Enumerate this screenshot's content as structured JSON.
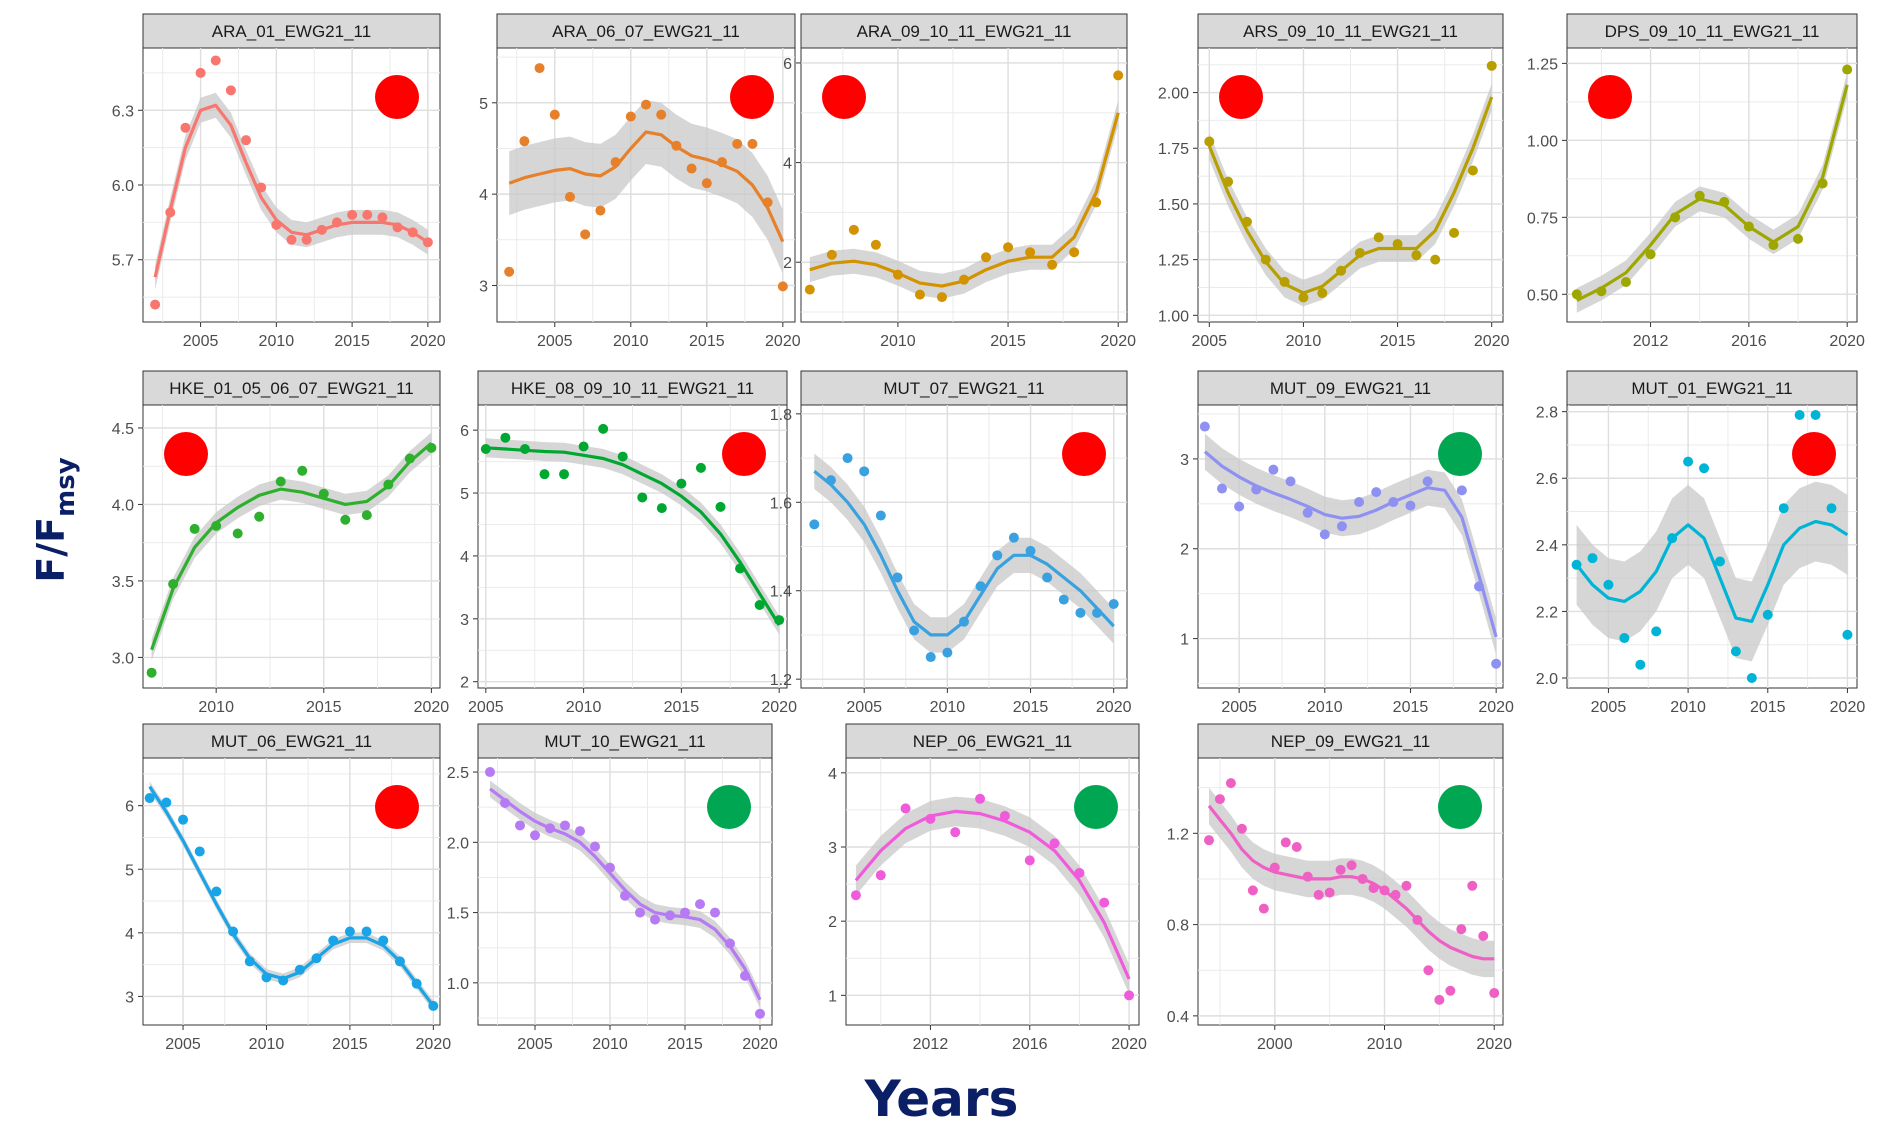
{
  "figure": {
    "ylabel_main": "F",
    "ylabel_main_sub": "msy",
    "ylabel_main_prefix": "F/",
    "xlabel_main": "Years",
    "colors": {
      "red_dot": "#ff0000",
      "green_dot": "#00a651",
      "strip": "#d9d9d9",
      "ribbon": "#c8c8c8",
      "title_blue": "#0b1f66"
    }
  },
  "chart_data": [
    {
      "type": "scatter",
      "title": "ARA_01_EWG21_11",
      "color": "#f8766d",
      "status": "red",
      "status_pos": "top-right",
      "xlim": [
        2001.2,
        2020.8
      ],
      "ylim": [
        5.45,
        6.55
      ],
      "xticks": [
        2005,
        2010,
        2015,
        2020
      ],
      "yticks": [
        5.7,
        6.0,
        6.3
      ],
      "ytick_labels": [
        "5.7",
        "6.0",
        "6.3"
      ],
      "x": [
        2002,
        2003,
        2004,
        2005,
        2006,
        2007,
        2008,
        2009,
        2010,
        2011,
        2012,
        2013,
        2014,
        2015,
        2016,
        2017,
        2018,
        2019,
        2020
      ],
      "y": [
        5.52,
        5.89,
        6.23,
        6.45,
        6.5,
        6.38,
        6.18,
        5.99,
        5.84,
        5.78,
        5.78,
        5.82,
        5.85,
        5.88,
        5.88,
        5.87,
        5.83,
        5.81,
        5.77
      ],
      "smooth": [
        5.63,
        5.9,
        6.15,
        6.3,
        6.32,
        6.24,
        6.09,
        5.95,
        5.86,
        5.81,
        5.8,
        5.82,
        5.84,
        5.85,
        5.85,
        5.85,
        5.84,
        5.81,
        5.77
      ],
      "band": 0.05
    },
    {
      "type": "scatter",
      "title": "ARA_06_07_EWG21_11",
      "color": "#e6802a",
      "status": "red",
      "status_pos": "top-right",
      "xlim": [
        2001.2,
        2020.8
      ],
      "ylim": [
        2.6,
        5.6
      ],
      "xticks": [
        2005,
        2010,
        2015,
        2020
      ],
      "yticks": [
        3,
        4,
        5
      ],
      "ytick_labels": [
        "3",
        "4",
        "5"
      ],
      "x": [
        2002,
        2003,
        2004,
        2005,
        2006,
        2007,
        2008,
        2009,
        2010,
        2011,
        2012,
        2013,
        2014,
        2015,
        2016,
        2017,
        2018,
        2019,
        2020
      ],
      "y": [
        3.15,
        4.58,
        5.38,
        4.87,
        3.97,
        3.56,
        3.82,
        4.35,
        4.85,
        4.98,
        4.87,
        4.53,
        4.28,
        4.12,
        4.35,
        4.55,
        4.55,
        3.91,
        2.99
      ],
      "smooth": [
        4.12,
        4.18,
        4.22,
        4.26,
        4.28,
        4.22,
        4.2,
        4.3,
        4.5,
        4.68,
        4.65,
        4.52,
        4.42,
        4.38,
        4.32,
        4.25,
        4.1,
        3.85,
        3.48
      ],
      "band": 0.35
    },
    {
      "type": "scatter",
      "title": "ARA_09_10_11_EWG21_11",
      "color": "#d39200",
      "status": "red",
      "status_pos": "top-left",
      "xlim": [
        2005.6,
        2020.4
      ],
      "ylim": [
        0.8,
        6.3
      ],
      "xticks": [
        2010,
        2015,
        2020
      ],
      "yticks": [
        2,
        4,
        6
      ],
      "ytick_labels": [
        "2",
        "4",
        "6"
      ],
      "x": [
        2006,
        2007,
        2008,
        2009,
        2010,
        2011,
        2012,
        2013,
        2014,
        2015,
        2016,
        2017,
        2018,
        2019,
        2020
      ],
      "y": [
        1.45,
        2.15,
        2.65,
        2.35,
        1.75,
        1.35,
        1.3,
        1.65,
        2.1,
        2.3,
        2.2,
        1.95,
        2.2,
        3.2,
        5.75
      ],
      "smooth": [
        1.85,
        1.98,
        2.02,
        1.95,
        1.78,
        1.58,
        1.52,
        1.62,
        1.85,
        2.02,
        2.1,
        2.1,
        2.5,
        3.4,
        5.0
      ],
      "band": 0.25
    },
    {
      "type": "scatter",
      "title": "ARS_09_10_11_EWG21_11",
      "color": "#b79f00",
      "status": "red",
      "status_pos": "top-left",
      "xlim": [
        2004.4,
        2020.6
      ],
      "ylim": [
        0.97,
        2.2
      ],
      "xticks": [
        2005,
        2010,
        2015,
        2020
      ],
      "yticks": [
        1.0,
        1.25,
        1.5,
        1.75,
        2.0
      ],
      "ytick_labels": [
        "1.00",
        "1.25",
        "1.50",
        "1.75",
        "2.00"
      ],
      "x": [
        2005,
        2006,
        2007,
        2008,
        2009,
        2010,
        2011,
        2012,
        2013,
        2014,
        2015,
        2016,
        2017,
        2018,
        2019,
        2020
      ],
      "y": [
        1.78,
        1.6,
        1.42,
        1.25,
        1.15,
        1.08,
        1.1,
        1.2,
        1.28,
        1.35,
        1.32,
        1.27,
        1.25,
        1.37,
        1.65,
        2.12
      ],
      "smooth": [
        1.76,
        1.55,
        1.38,
        1.24,
        1.14,
        1.1,
        1.13,
        1.2,
        1.27,
        1.3,
        1.3,
        1.3,
        1.38,
        1.55,
        1.75,
        1.98
      ],
      "band": 0.06
    },
    {
      "type": "scatter",
      "title": "DPS_09_10_11_EWG21_11",
      "color": "#9da700",
      "status": "red",
      "status_pos": "top-left",
      "xlim": [
        2008.6,
        2020.4
      ],
      "ylim": [
        0.41,
        1.3
      ],
      "xticks": [
        2012,
        2016,
        2020
      ],
      "yticks": [
        0.5,
        0.75,
        1.0,
        1.25
      ],
      "ytick_labels": [
        "0.50",
        "0.75",
        "1.00",
        "1.25"
      ],
      "x": [
        2009,
        2010,
        2011,
        2012,
        2013,
        2014,
        2015,
        2016,
        2017,
        2018,
        2019,
        2020
      ],
      "y": [
        0.5,
        0.51,
        0.54,
        0.63,
        0.75,
        0.82,
        0.8,
        0.72,
        0.66,
        0.68,
        0.86,
        1.23
      ],
      "smooth": [
        0.48,
        0.52,
        0.57,
        0.66,
        0.76,
        0.81,
        0.79,
        0.72,
        0.67,
        0.72,
        0.88,
        1.18
      ],
      "band": 0.04
    },
    {
      "type": "scatter",
      "title": "HKE_01_05_06_07_EWG21_11",
      "color": "#2eb02e",
      "status": "red",
      "status_pos": "top-left",
      "xlim": [
        2006.6,
        2020.4
      ],
      "ylim": [
        2.8,
        4.65
      ],
      "xticks": [
        2010,
        2015,
        2020
      ],
      "yticks": [
        3.0,
        3.5,
        4.0,
        4.5
      ],
      "ytick_labels": [
        "3.0",
        "3.5",
        "4.0",
        "4.5"
      ],
      "x": [
        2007,
        2008,
        2009,
        2010,
        2011,
        2012,
        2013,
        2014,
        2015,
        2016,
        2017,
        2018,
        2019,
        2020
      ],
      "y": [
        2.9,
        3.48,
        3.84,
        3.86,
        3.81,
        3.92,
        4.15,
        4.22,
        4.07,
        3.9,
        3.93,
        4.13,
        4.3,
        4.37
      ],
      "smooth": [
        3.05,
        3.45,
        3.72,
        3.88,
        3.98,
        4.06,
        4.1,
        4.08,
        4.04,
        4.0,
        4.02,
        4.12,
        4.28,
        4.4
      ],
      "band": 0.07
    },
    {
      "type": "scatter",
      "title": "HKE_08_09_10_11_EWG21_11",
      "color": "#00a831",
      "status": "red",
      "status_pos": "top-right",
      "xlim": [
        2004.6,
        2020.4
      ],
      "ylim": [
        1.9,
        6.4
      ],
      "xticks": [
        2005,
        2010,
        2015,
        2020
      ],
      "yticks": [
        2,
        3,
        4,
        5,
        6
      ],
      "ytick_labels": [
        "2",
        "3",
        "4",
        "5",
        "6"
      ],
      "x": [
        2005,
        2006,
        2007,
        2008,
        2009,
        2010,
        2011,
        2012,
        2013,
        2014,
        2015,
        2016,
        2017,
        2018,
        2019,
        2020
      ],
      "y": [
        5.7,
        5.88,
        5.7,
        5.3,
        5.3,
        5.74,
        6.02,
        5.58,
        4.93,
        4.76,
        5.15,
        5.4,
        4.78,
        3.8,
        3.22,
        2.98
      ],
      "smooth": [
        5.72,
        5.7,
        5.68,
        5.66,
        5.65,
        5.6,
        5.55,
        5.45,
        5.3,
        5.15,
        4.95,
        4.7,
        4.35,
        3.9,
        3.4,
        2.9
      ],
      "band": 0.15
    },
    {
      "type": "scatter",
      "title": "MUT_07_EWG21_11",
      "color": "#3aa1e0",
      "status": "red",
      "status_pos": "top-right",
      "xlim": [
        2001.2,
        2020.8
      ],
      "ylim": [
        1.18,
        1.82
      ],
      "xticks": [
        2005,
        2010,
        2015,
        2020
      ],
      "yticks": [
        1.2,
        1.4,
        1.6,
        1.8
      ],
      "ytick_labels": [
        "1.2",
        "1.4",
        "1.6",
        "1.8"
      ],
      "x": [
        2002,
        2003,
        2004,
        2005,
        2006,
        2007,
        2008,
        2009,
        2010,
        2011,
        2012,
        2013,
        2014,
        2015,
        2016,
        2017,
        2018,
        2019,
        2020
      ],
      "y": [
        1.55,
        1.65,
        1.7,
        1.67,
        1.57,
        1.43,
        1.31,
        1.25,
        1.26,
        1.33,
        1.41,
        1.48,
        1.52,
        1.49,
        1.43,
        1.38,
        1.35,
        1.35,
        1.37
      ],
      "smooth": [
        1.67,
        1.64,
        1.6,
        1.55,
        1.48,
        1.4,
        1.33,
        1.3,
        1.3,
        1.33,
        1.39,
        1.45,
        1.48,
        1.48,
        1.46,
        1.43,
        1.4,
        1.36,
        1.32
      ],
      "band": 0.04
    },
    {
      "type": "scatter",
      "title": "MUT_09_EWG21_11",
      "color": "#8f91f2",
      "status": "green",
      "status_pos": "top-right",
      "xlim": [
        2002.6,
        2020.4
      ],
      "ylim": [
        0.45,
        3.6
      ],
      "xticks": [
        2005,
        2010,
        2015,
        2020
      ],
      "yticks": [
        1,
        2,
        3
      ],
      "ytick_labels": [
        "1",
        "2",
        "3"
      ],
      "x": [
        2003,
        2004,
        2005,
        2006,
        2007,
        2008,
        2009,
        2010,
        2011,
        2012,
        2013,
        2014,
        2015,
        2016,
        2017,
        2018,
        2019,
        2020
      ],
      "y": [
        3.36,
        2.67,
        2.47,
        2.66,
        2.88,
        2.75,
        2.4,
        2.16,
        2.25,
        2.52,
        2.63,
        2.52,
        2.48,
        2.75,
        3.0,
        2.65,
        1.58,
        0.72
      ],
      "smooth": [
        3.08,
        2.92,
        2.8,
        2.7,
        2.62,
        2.55,
        2.47,
        2.38,
        2.34,
        2.36,
        2.43,
        2.52,
        2.6,
        2.68,
        2.65,
        2.35,
        1.7,
        1.02
      ],
      "band": 0.2
    },
    {
      "type": "scatter",
      "title": "MUT_01_EWG21_11",
      "color": "#00b4d6",
      "status": "red",
      "status_pos": "top-right",
      "xlim": [
        2002.4,
        2020.6
      ],
      "ylim": [
        1.97,
        2.82
      ],
      "xticks": [
        2005,
        2010,
        2015,
        2020
      ],
      "yticks": [
        2.0,
        2.2,
        2.4,
        2.6,
        2.8
      ],
      "ytick_labels": [
        "2.0",
        "2.2",
        "2.4",
        "2.6",
        "2.8"
      ],
      "x": [
        2003,
        2004,
        2005,
        2006,
        2007,
        2008,
        2009,
        2010,
        2011,
        2012,
        2013,
        2014,
        2015,
        2016,
        2017,
        2018,
        2019,
        2020
      ],
      "y": [
        2.34,
        2.36,
        2.28,
        2.12,
        2.04,
        2.14,
        2.42,
        2.65,
        2.63,
        2.35,
        2.08,
        2.0,
        2.19,
        2.51,
        2.79,
        2.79,
        2.51,
        2.13
      ],
      "smooth": [
        2.34,
        2.28,
        2.24,
        2.23,
        2.26,
        2.32,
        2.42,
        2.46,
        2.42,
        2.3,
        2.18,
        2.17,
        2.28,
        2.4,
        2.45,
        2.47,
        2.46,
        2.43
      ],
      "band": 0.12
    },
    {
      "type": "scatter",
      "title": "MUT_06_EWG21_11",
      "color": "#1aa4e8",
      "status": "red",
      "status_pos": "top-right",
      "xlim": [
        2002.6,
        2020.4
      ],
      "ylim": [
        2.55,
        6.75
      ],
      "xticks": [
        2005,
        2010,
        2015,
        2020
      ],
      "yticks": [
        3,
        4,
        5,
        6
      ],
      "ytick_labels": [
        "3",
        "4",
        "5",
        "6"
      ],
      "x": [
        2003,
        2004,
        2005,
        2006,
        2007,
        2008,
        2009,
        2010,
        2011,
        2012,
        2013,
        2014,
        2015,
        2016,
        2017,
        2018,
        2019,
        2020
      ],
      "y": [
        6.12,
        6.05,
        5.78,
        5.28,
        4.65,
        4.02,
        3.55,
        3.3,
        3.25,
        3.42,
        3.6,
        3.88,
        4.02,
        4.02,
        3.88,
        3.55,
        3.2,
        2.85
      ],
      "smooth": [
        6.3,
        5.9,
        5.45,
        4.95,
        4.45,
        3.98,
        3.6,
        3.35,
        3.28,
        3.38,
        3.6,
        3.82,
        3.92,
        3.92,
        3.8,
        3.55,
        3.2,
        2.85
      ],
      "band": 0.08
    },
    {
      "type": "scatter",
      "title": "MUT_10_EWG21_11",
      "color": "#b67af5",
      "status": "green",
      "status_pos": "top-right",
      "xlim": [
        2001.2,
        2020.8
      ],
      "ylim": [
        0.7,
        2.6
      ],
      "xticks": [
        2005,
        2010,
        2015,
        2020
      ],
      "yticks": [
        1.0,
        1.5,
        2.0,
        2.5
      ],
      "ytick_labels": [
        "1.0",
        "1.5",
        "2.0",
        "2.5"
      ],
      "x": [
        2002,
        2003,
        2004,
        2005,
        2006,
        2007,
        2008,
        2009,
        2010,
        2011,
        2012,
        2013,
        2014,
        2015,
        2016,
        2017,
        2018,
        2019,
        2020
      ],
      "y": [
        2.5,
        2.28,
        2.12,
        2.05,
        2.1,
        2.12,
        2.08,
        1.97,
        1.82,
        1.62,
        1.5,
        1.45,
        1.48,
        1.5,
        1.56,
        1.5,
        1.28,
        1.05,
        0.78
      ],
      "smooth": [
        2.38,
        2.3,
        2.22,
        2.15,
        2.1,
        2.06,
        2.0,
        1.9,
        1.78,
        1.66,
        1.56,
        1.5,
        1.48,
        1.47,
        1.45,
        1.38,
        1.26,
        1.1,
        0.88
      ],
      "band": 0.06
    },
    {
      "type": "scatter",
      "title": "NEP_06_EWG21_11",
      "color": "#f05bdb",
      "status": "green",
      "status_pos": "top-right",
      "xlim": [
        2008.6,
        2020.4
      ],
      "ylim": [
        0.6,
        4.2
      ],
      "xticks": [
        2012,
        2016,
        2020
      ],
      "yticks": [
        1,
        2,
        3,
        4
      ],
      "ytick_labels": [
        "1",
        "2",
        "3",
        "4"
      ],
      "x": [
        2009,
        2010,
        2011,
        2012,
        2013,
        2014,
        2015,
        2016,
        2017,
        2018,
        2019,
        2020
      ],
      "y": [
        2.35,
        2.62,
        3.52,
        3.38,
        3.2,
        3.65,
        3.42,
        2.82,
        3.05,
        2.65,
        2.25,
        1.0
      ],
      "smooth": [
        2.55,
        2.95,
        3.25,
        3.42,
        3.48,
        3.45,
        3.35,
        3.2,
        2.95,
        2.55,
        1.98,
        1.22
      ],
      "band": 0.2
    },
    {
      "type": "scatter",
      "title": "NEP_09_EWG21_11",
      "color": "#ef60c4",
      "status": "green",
      "status_pos": "top-right",
      "xlim": [
        1993.0,
        2020.8
      ],
      "ylim": [
        0.36,
        1.53
      ],
      "xticks": [
        2000,
        2010,
        2020
      ],
      "yticks": [
        0.4,
        0.8,
        1.2
      ],
      "ytick_labels": [
        "0.4",
        "0.8",
        "1.2"
      ],
      "x": [
        1994,
        1995,
        1996,
        1997,
        1998,
        1999,
        2000,
        2001,
        2002,
        2003,
        2004,
        2005,
        2006,
        2007,
        2008,
        2009,
        2010,
        2011,
        2012,
        2013,
        2014,
        2015,
        2016,
        2017,
        2018,
        2019,
        2020
      ],
      "y": [
        1.17,
        1.35,
        1.42,
        1.22,
        0.95,
        0.87,
        1.05,
        1.16,
        1.14,
        1.01,
        0.93,
        0.94,
        1.04,
        1.06,
        1.0,
        0.96,
        0.95,
        0.93,
        0.97,
        0.82,
        0.6,
        0.47,
        0.51,
        0.78,
        0.97,
        0.75,
        0.5
      ],
      "smooth": [
        1.32,
        1.26,
        1.2,
        1.13,
        1.08,
        1.05,
        1.03,
        1.02,
        1.01,
        1.0,
        1.0,
        1.0,
        1.01,
        1.01,
        1.0,
        0.98,
        0.95,
        0.91,
        0.87,
        0.82,
        0.77,
        0.73,
        0.7,
        0.68,
        0.66,
        0.65,
        0.65
      ],
      "band": 0.08
    }
  ]
}
